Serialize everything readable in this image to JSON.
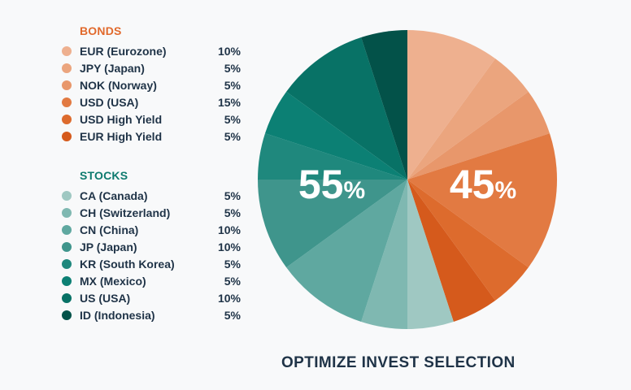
{
  "footer_title": "OPTIMIZE INVEST SELECTION",
  "chart_data": {
    "type": "pie",
    "title": "OPTIMIZE INVEST SELECTION",
    "totals": [
      {
        "group": "STOCKS",
        "label": "55",
        "unit": "%",
        "color": "#ffffff"
      },
      {
        "group": "BONDS",
        "label": "45",
        "unit": "%",
        "color": "#ffffff"
      }
    ],
    "groups": [
      {
        "name": "BONDS",
        "color": "#e1692c",
        "items": [
          {
            "label": "EUR (Eurozone)",
            "value": 10,
            "value_label": "10%",
            "color": "#eeb08f"
          },
          {
            "label": "JPY (Japan)",
            "value": 5,
            "value_label": "5%",
            "color": "#eba57e"
          },
          {
            "label": "NOK (Norway)",
            "value": 5,
            "value_label": "5%",
            "color": "#e8976b"
          },
          {
            "label": "USD (USA)",
            "value": 15,
            "value_label": "15%",
            "color": "#e27a42"
          },
          {
            "label": "USD High Yield",
            "value": 5,
            "value_label": "5%",
            "color": "#dd6b2d"
          },
          {
            "label": "EUR High Yield",
            "value": 5,
            "value_label": "5%",
            "color": "#d55a1c"
          }
        ]
      },
      {
        "name": "STOCKS",
        "color": "#0d7a6e",
        "items": [
          {
            "label": "CA (Canada)",
            "value": 5,
            "value_label": "5%",
            "color": "#9fc8c2"
          },
          {
            "label": "CH (Switzerland)",
            "value": 5,
            "value_label": "5%",
            "color": "#7fb8b1"
          },
          {
            "label": "CN (China)",
            "value": 10,
            "value_label": "10%",
            "color": "#5fa8a0"
          },
          {
            "label": "JP (Japan)",
            "value": 10,
            "value_label": "10%",
            "color": "#3f958c"
          },
          {
            "label": "KR (South Korea)",
            "value": 5,
            "value_label": "5%",
            "color": "#1f887d"
          },
          {
            "label": "MX (Mexico)",
            "value": 5,
            "value_label": "5%",
            "color": "#0c8074"
          },
          {
            "label": "US (USA)",
            "value": 10,
            "value_label": "10%",
            "color": "#087266"
          },
          {
            "label": "ID (Indonesia)",
            "value": 5,
            "value_label": "5%",
            "color": "#035249"
          }
        ]
      }
    ]
  }
}
